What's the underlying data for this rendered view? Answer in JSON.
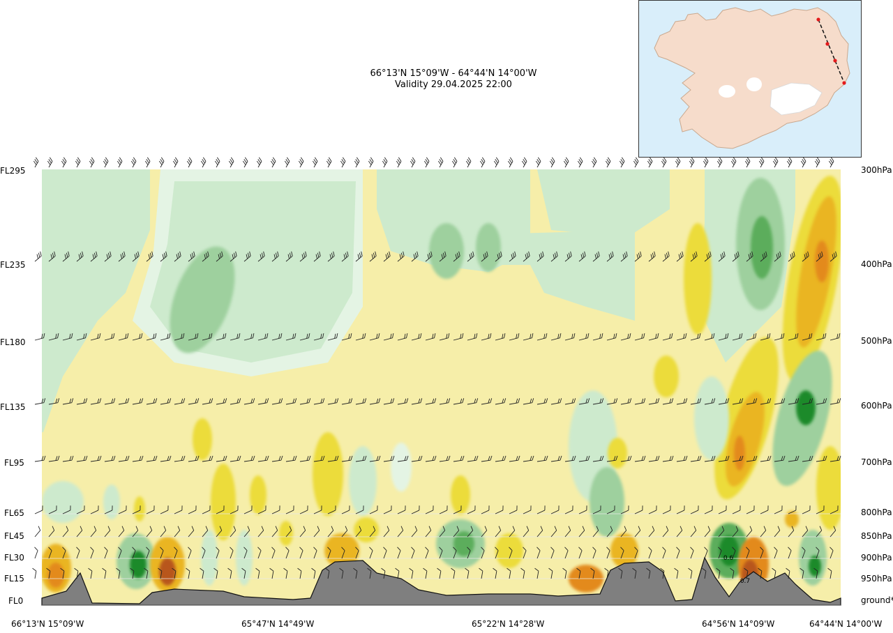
{
  "title": {
    "route": "66°13'N 15°09'W - 64°44'N 14°00'W",
    "validity": "Validity 29.04.2025 22:00"
  },
  "left_axis": [
    "FL295",
    "FL235",
    "FL180",
    "FL135",
    "FL95",
    "FL65",
    "FL45",
    "FL30",
    "FL15",
    "FL0"
  ],
  "right_axis": [
    "300hPa",
    "400hPa",
    "500hPa",
    "600hPa",
    "700hPa",
    "800hPa",
    "850hPa",
    "900hPa",
    "950hPa",
    "ground*"
  ],
  "x_axis": [
    "66°13'N 15°09'W",
    "65°47'N 14°49'W",
    "65°22'N 14°28'W",
    "64°56'N 14°09'W",
    "64°44'N 14°00'W"
  ],
  "annotations": [
    "0.6",
    "0.7"
  ],
  "colors": {
    "sink_light": "#e4f4e4",
    "sink": "#cdeacd",
    "sink_mid": "#9ed09e",
    "sink_strong": "#5cad5c",
    "sink_max": "#1f8a2a",
    "rise_light": "#fdf9d2",
    "rise": "#f6eea9",
    "rise_mid": "#ecdc3a",
    "rise_strong": "#eab522",
    "rise_high": "#e38a1e",
    "rise_max": "#b8561a",
    "terrain": "#7f7f7f",
    "inset_sea": "#d9eefa",
    "inset_land": "#f6dccb",
    "route_marker": "#e31a1c"
  },
  "icons": [
    "wind-barb-icon"
  ]
}
